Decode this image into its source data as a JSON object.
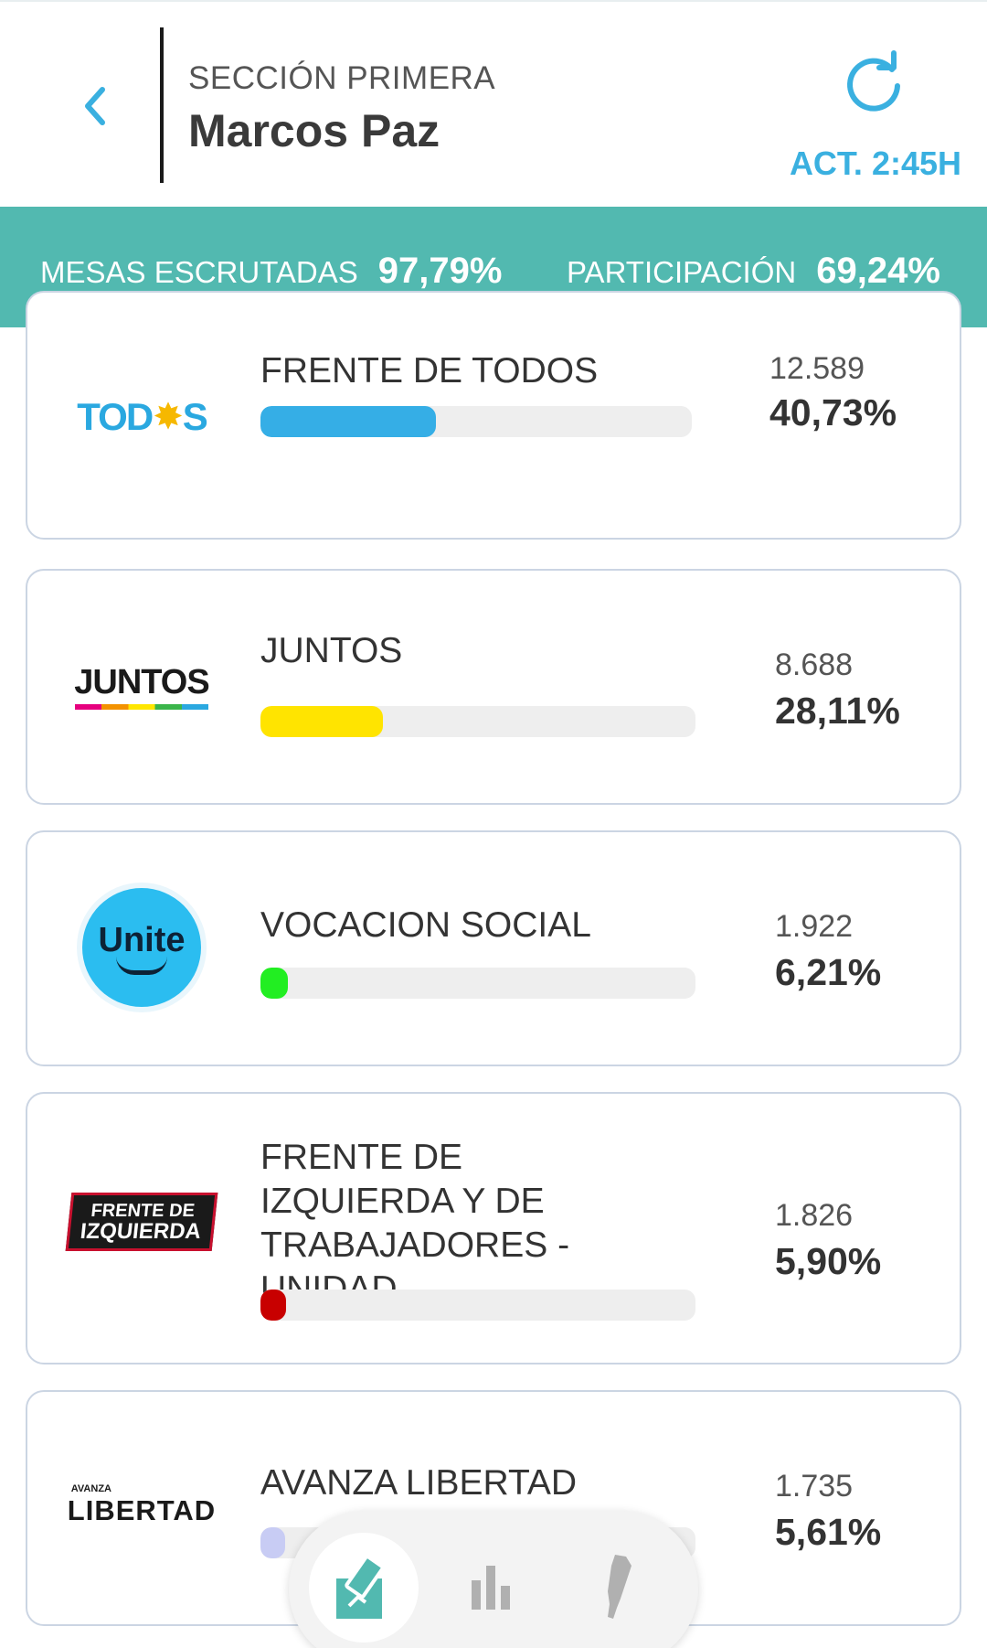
{
  "header": {
    "section_label": "SECCIÓN PRIMERA",
    "place_name": "Marcos Paz",
    "updated_text": "ACT. 2:45H",
    "back_icon": "chevron-left-icon",
    "refresh_icon": "refresh-icon",
    "accent_color": "#3ab0e0"
  },
  "stats": {
    "mesas_label": "MESAS ESCRUTADAS",
    "mesas_value": "97,79%",
    "participacion_label": "PARTICIPACIÓN",
    "participacion_value": "69,24%",
    "bar_color": "#52b9b0"
  },
  "parties": [
    {
      "name": "FRENTE DE TODOS",
      "votes": "12.589",
      "percent": "40,73%",
      "bar_fraction": 0.4073,
      "bar_color": "#35aee6",
      "logo": {
        "line1": "TOD",
        "sun": "✸",
        "line2": "S"
      }
    },
    {
      "name": "JUNTOS",
      "votes": "8.688",
      "percent": "28,11%",
      "bar_fraction": 0.2811,
      "bar_color": "#ffe400",
      "logo": {
        "text": "JUNTOS"
      }
    },
    {
      "name": "VOCACION SOCIAL",
      "votes": "1.922",
      "percent": "6,21%",
      "bar_fraction": 0.0621,
      "bar_color": "#22ee22",
      "logo": {
        "text": "Unite"
      }
    },
    {
      "name": "FRENTE DE IZQUIERDA Y DE TRABAJADORES - UNIDAD",
      "votes": "1.826",
      "percent": "5,90%",
      "bar_fraction": 0.059,
      "bar_color": "#c80000",
      "logo": {
        "line1": "FRENTE DE",
        "line2": "IZQUIERDA"
      }
    },
    {
      "name": "AVANZA LIBERTAD",
      "votes": "1.735",
      "percent": "5,61%",
      "bar_fraction": 0.0561,
      "bar_color": "#c8ccf4",
      "logo": {
        "small": "AVANZA",
        "text": "LIBERTAD"
      }
    }
  ],
  "bottom_nav": {
    "items": [
      {
        "icon": "ballot-box-icon",
        "active": true
      },
      {
        "icon": "bar-chart-icon",
        "active": false
      },
      {
        "icon": "argentina-map-icon",
        "active": false
      }
    ],
    "active_color": "#52b9b0",
    "inactive_color": "#b0b0b0"
  }
}
